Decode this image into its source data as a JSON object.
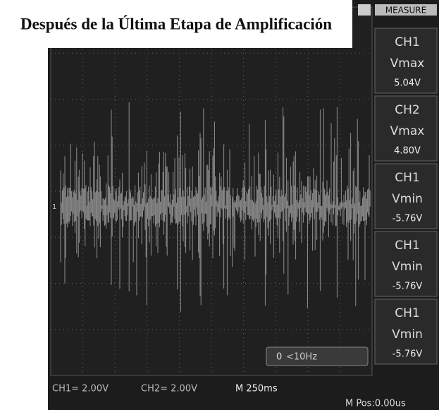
{
  "title": "Después de la Última Etapa de Amplificación",
  "measure": {
    "header": "MEASURE",
    "items": [
      {
        "channel": "CH1",
        "label": "Vmax",
        "value": "5.04V"
      },
      {
        "channel": "CH2",
        "label": "Vmax",
        "value": "4.80V"
      },
      {
        "channel": "CH1",
        "label": "Vmin",
        "value": "-5.76V"
      },
      {
        "channel": "CH1",
        "label": "Vmin",
        "value": "-5.76V"
      },
      {
        "channel": "CH1",
        "label": "Vmin",
        "value": "-5.76V"
      }
    ]
  },
  "marker": "1",
  "trigger": {
    "icon": "0",
    "text": "<10Hz"
  },
  "status": {
    "ch1": "CH1= 2.00V",
    "ch2": "CH2= 2.00V",
    "time": "M 250ms",
    "pos": "M Pos:0.00us"
  }
}
